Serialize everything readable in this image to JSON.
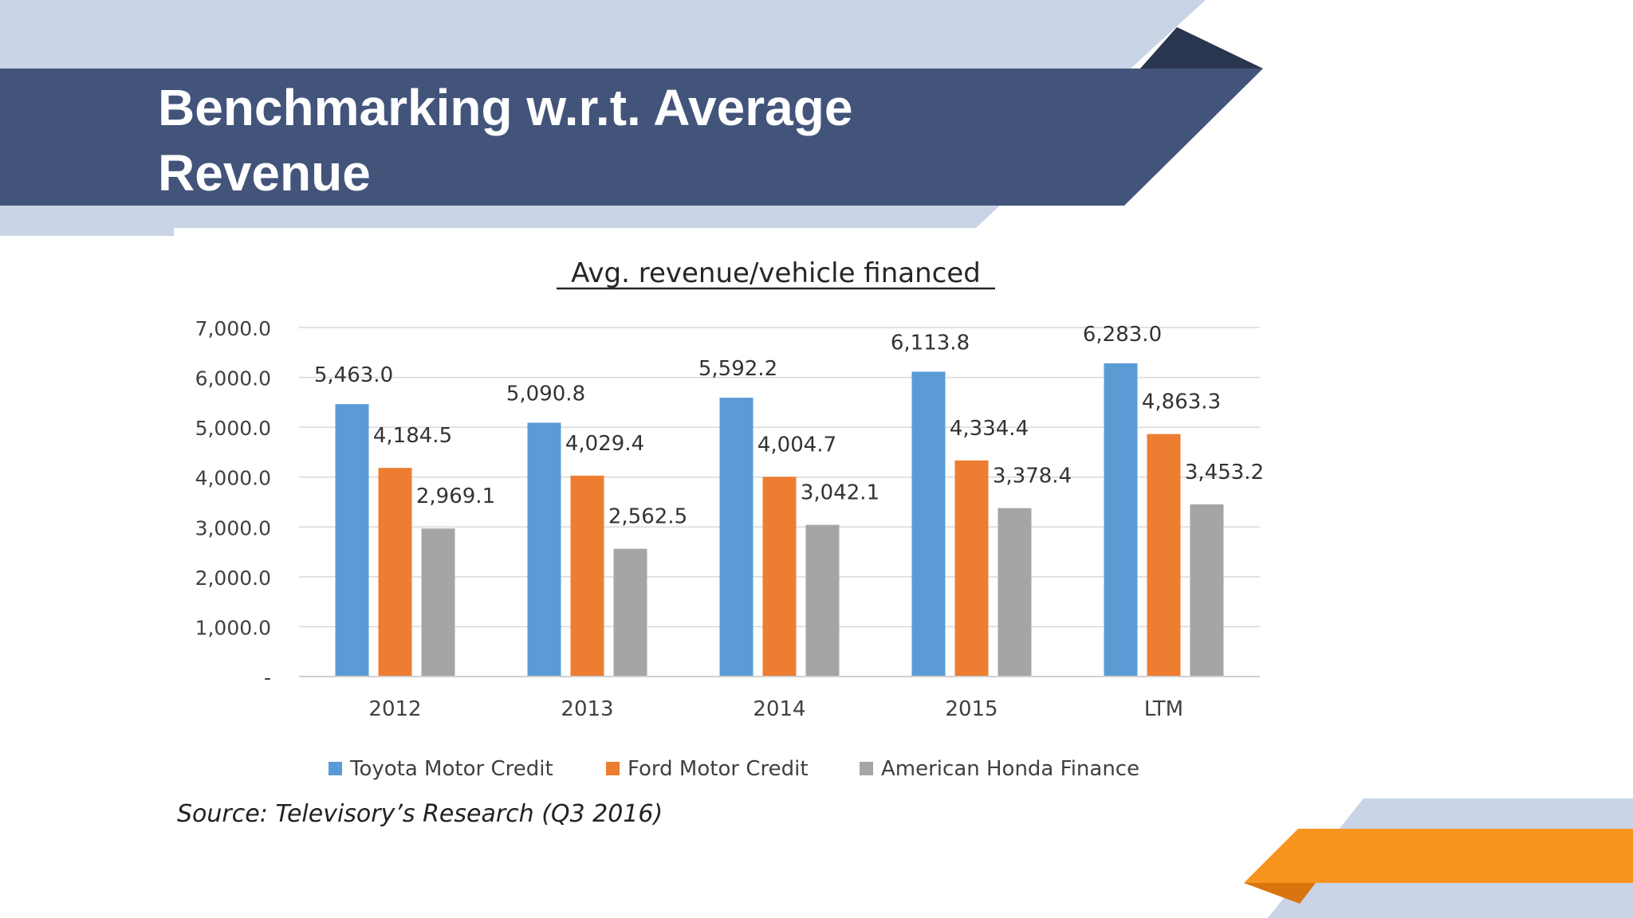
{
  "slide": {
    "title_line1": "Benchmarking w.r.t. Average",
    "title_line2": "Revenue",
    "source": "Source: Televisory’s Research (Q3 2016)",
    "colors": {
      "band_dark": "#43547A",
      "band_light": "#C8D4E6",
      "corner_dark": "#2A3550",
      "accent_orange": "#F7941D",
      "accent_orange_dark": "#D9750F"
    }
  },
  "chart_data": {
    "type": "bar",
    "title": "Avg. revenue/vehicle financed",
    "xlabel": "",
    "ylabel": "",
    "categories": [
      "2012",
      "2013",
      "2014",
      "2015",
      "LTM"
    ],
    "series": [
      {
        "name": "Toyota Motor Credit",
        "color": "#5B9BD5",
        "values": [
          5463.0,
          5090.8,
          5592.2,
          6113.8,
          6283.0
        ]
      },
      {
        "name": "Ford Motor Credit",
        "color": "#ED7D31",
        "values": [
          4184.5,
          4029.4,
          4004.7,
          4334.4,
          4863.3
        ]
      },
      {
        "name": "American Honda Finance",
        "color": "#A5A5A5",
        "values": [
          2969.1,
          2562.5,
          3042.1,
          3378.4,
          3453.2
        ]
      }
    ],
    "data_labels": [
      [
        "5,463.0",
        "5,090.8",
        "5,592.2",
        "6,113.8",
        "6,283.0"
      ],
      [
        "4,184.5",
        "4,029.4",
        "4,004.7",
        "4,334.4",
        "4,863.3"
      ],
      [
        "2,969.1",
        "2,562.5",
        "3,042.1",
        "3,378.4",
        "3,453.2"
      ]
    ],
    "ylim": [
      0,
      7000
    ],
    "yticks": [
      0,
      1000,
      2000,
      3000,
      4000,
      5000,
      6000,
      7000
    ],
    "ytick_labels": [
      "-",
      "1,000.0",
      "2,000.0",
      "3,000.0",
      "4,000.0",
      "5,000.0",
      "6,000.0",
      "7,000.0"
    ],
    "grid": true,
    "legend": "bottom"
  }
}
